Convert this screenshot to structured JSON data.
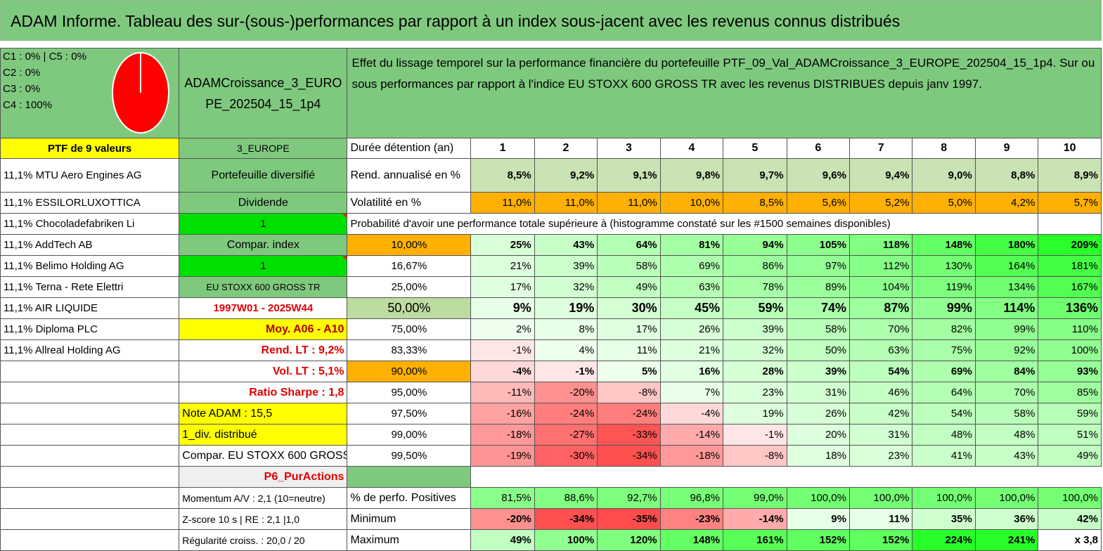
{
  "title": "ADAM Informe. Tableau des sur-(sous-)performances par rapport à un index sous-jacent avec les revenus connus distribués",
  "legend": [
    "C1 : 0% | C5 : 0%",
    "C2 : 0%",
    "C3 : 0%",
    "C4 : 100%"
  ],
  "pie": {
    "c4_share": 1.0,
    "color": "#ff0000"
  },
  "portfolio_name": "ADAMCroissance_3_EUROPE_202504_15_1p4",
  "description": "Effet du lissage temporel sur la performance financière du portefeuille PTF_09_Val_ADAMCroissance_3_EUROPE_202504_15_1p4. Sur ou sous performances par rapport à l'indice EU STOXX 600 GROSS TR avec les revenus DISTRIBUES depuis janv 1997.",
  "left_col": {
    "header": "PTF de 9 valeurs",
    "holdings": [
      "11,1% MTU Aero Engines AG",
      "11,1% ESSILORLUXOTTICA",
      "11,1% Chocoladefabriken Li",
      "11,1% AddTech AB",
      "11,1% Belimo Holding AG",
      "11,1% Terna - Rete Elettri",
      "11,1% AIR LIQUIDE",
      "11,1% Diploma PLC",
      "11,1% Allreal Holding AG"
    ]
  },
  "mid_col": {
    "region": "3_EUROPE",
    "type": "Portefeuille diversifié",
    "dividend_label": "Dividende",
    "dividend_value": "1",
    "compar_label": "Compar. index",
    "compar_value": "1",
    "index_name": "EU STOXX 600 GROSS TR",
    "period": "1997W01 - 2025W44",
    "avg": "Moy. A06 - A10",
    "rend_lt": "Rend. LT : 9,2%",
    "vol_lt": "Vol. LT : 5,1%",
    "sharpe": "Ratio Sharpe : 1,8",
    "note": "Note ADAM : 15,5",
    "div_distrib": "1_div. distribué",
    "compar_full": "Compar. EU STOXX 600 GROSS TR",
    "p6": "P6_PurActions",
    "momentum": "Momentum A/V : 2,1 (10=neutre)",
    "zscore": "Z-score 10 s | RE : 2,1 |1,0",
    "regularite": "Régularité croiss. : 20,0 / 20"
  },
  "table": {
    "duration_label": "Durée détention (an)",
    "years": [
      "1",
      "2",
      "3",
      "4",
      "5",
      "6",
      "7",
      "8",
      "9",
      "10"
    ],
    "rend_label": "Rend. annualisé en %",
    "rend": [
      "8,5%",
      "9,2%",
      "9,1%",
      "9,8%",
      "9,7%",
      "9,6%",
      "9,4%",
      "9,0%",
      "8,8%",
      "8,9%"
    ],
    "vol_label": "Volatilité en %",
    "vol": [
      "11,0%",
      "11,0%",
      "11,0%",
      "10,0%",
      "8,5%",
      "5,6%",
      "5,2%",
      "5,0%",
      "4,2%",
      "5,7%"
    ],
    "proba_label": "Probabilité d'avoir une performance totale supérieure à (histogramme constaté sur les #1500 semaines disponibles)",
    "proba_rows": [
      {
        "p": "10,00%",
        "vals": [
          "25%",
          "43%",
          "64%",
          "81%",
          "94%",
          "105%",
          "118%",
          "148%",
          "180%",
          "209%"
        ]
      },
      {
        "p": "16,67%",
        "vals": [
          "21%",
          "39%",
          "58%",
          "69%",
          "86%",
          "97%",
          "112%",
          "130%",
          "164%",
          "181%"
        ]
      },
      {
        "p": "25,00%",
        "vals": [
          "17%",
          "32%",
          "49%",
          "63%",
          "78%",
          "89%",
          "104%",
          "119%",
          "134%",
          "167%"
        ]
      },
      {
        "p": "50,00%",
        "vals": [
          "9%",
          "19%",
          "30%",
          "45%",
          "59%",
          "74%",
          "87%",
          "99%",
          "114%",
          "136%"
        ]
      },
      {
        "p": "75,00%",
        "vals": [
          "2%",
          "8%",
          "17%",
          "26%",
          "39%",
          "58%",
          "70%",
          "82%",
          "99%",
          "110%"
        ]
      },
      {
        "p": "83,33%",
        "vals": [
          "-1%",
          "4%",
          "11%",
          "21%",
          "32%",
          "50%",
          "63%",
          "75%",
          "92%",
          "100%"
        ]
      },
      {
        "p": "90,00%",
        "vals": [
          "-4%",
          "-1%",
          "5%",
          "16%",
          "28%",
          "39%",
          "54%",
          "69%",
          "84%",
          "93%"
        ]
      },
      {
        "p": "95,00%",
        "vals": [
          "-11%",
          "-20%",
          "-8%",
          "7%",
          "23%",
          "31%",
          "46%",
          "64%",
          "70%",
          "85%"
        ]
      },
      {
        "p": "97,50%",
        "vals": [
          "-16%",
          "-24%",
          "-24%",
          "-4%",
          "19%",
          "26%",
          "42%",
          "54%",
          "58%",
          "59%"
        ]
      },
      {
        "p": "99,00%",
        "vals": [
          "-18%",
          "-27%",
          "-33%",
          "-14%",
          "-1%",
          "20%",
          "31%",
          "48%",
          "48%",
          "51%"
        ]
      },
      {
        "p": "99,50%",
        "vals": [
          "-19%",
          "-30%",
          "-34%",
          "-18%",
          "-8%",
          "18%",
          "23%",
          "41%",
          "43%",
          "49%"
        ]
      }
    ],
    "positives_label": "% de perfo. Positives",
    "positives": [
      "81,5%",
      "88,6%",
      "92,7%",
      "96,8%",
      "99,0%",
      "100,0%",
      "100,0%",
      "100,0%",
      "100,0%",
      "100,0%"
    ],
    "min_label": "Minimum",
    "min": [
      "-20%",
      "-34%",
      "-35%",
      "-23%",
      "-14%",
      "9%",
      "11%",
      "35%",
      "36%",
      "42%"
    ],
    "max_label": "Maximum",
    "max": [
      "49%",
      "100%",
      "120%",
      "148%",
      "161%",
      "152%",
      "152%",
      "224%",
      "241%",
      "x 3,8"
    ]
  }
}
